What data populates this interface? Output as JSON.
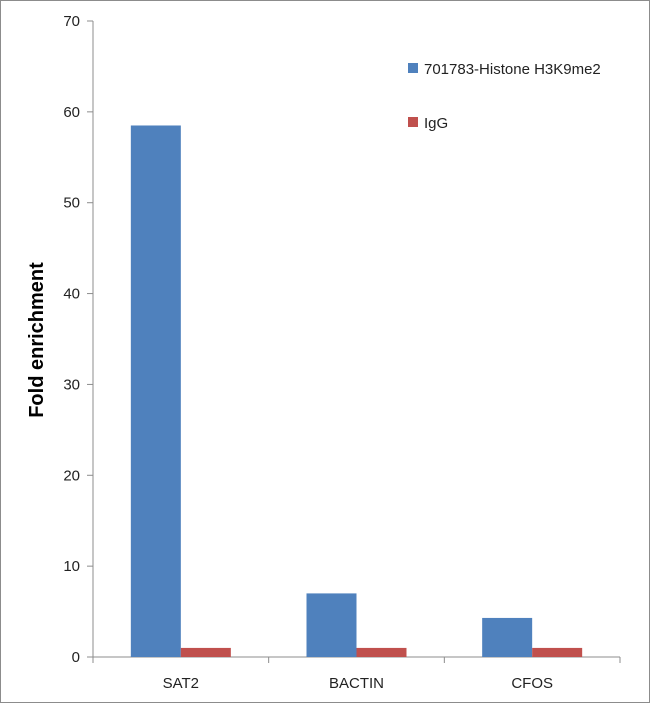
{
  "chart_data": {
    "type": "bar",
    "title": "",
    "xlabel": "",
    "ylabel": "Fold enrichment",
    "categories": [
      "SAT2",
      "BACTIN",
      "CFOS"
    ],
    "series": [
      {
        "name": "701783-Histone H3K9me2",
        "values": [
          58.5,
          7.0,
          4.3
        ],
        "color": "#4f81bd"
      },
      {
        "name": "IgG",
        "values": [
          1.0,
          1.0,
          1.0
        ],
        "color": "#c0504d"
      }
    ],
    "ylim": [
      0,
      70
    ],
    "yticks": [
      0,
      10,
      20,
      30,
      40,
      50,
      60,
      70
    ],
    "grid": false,
    "legend_position": "top-right"
  }
}
